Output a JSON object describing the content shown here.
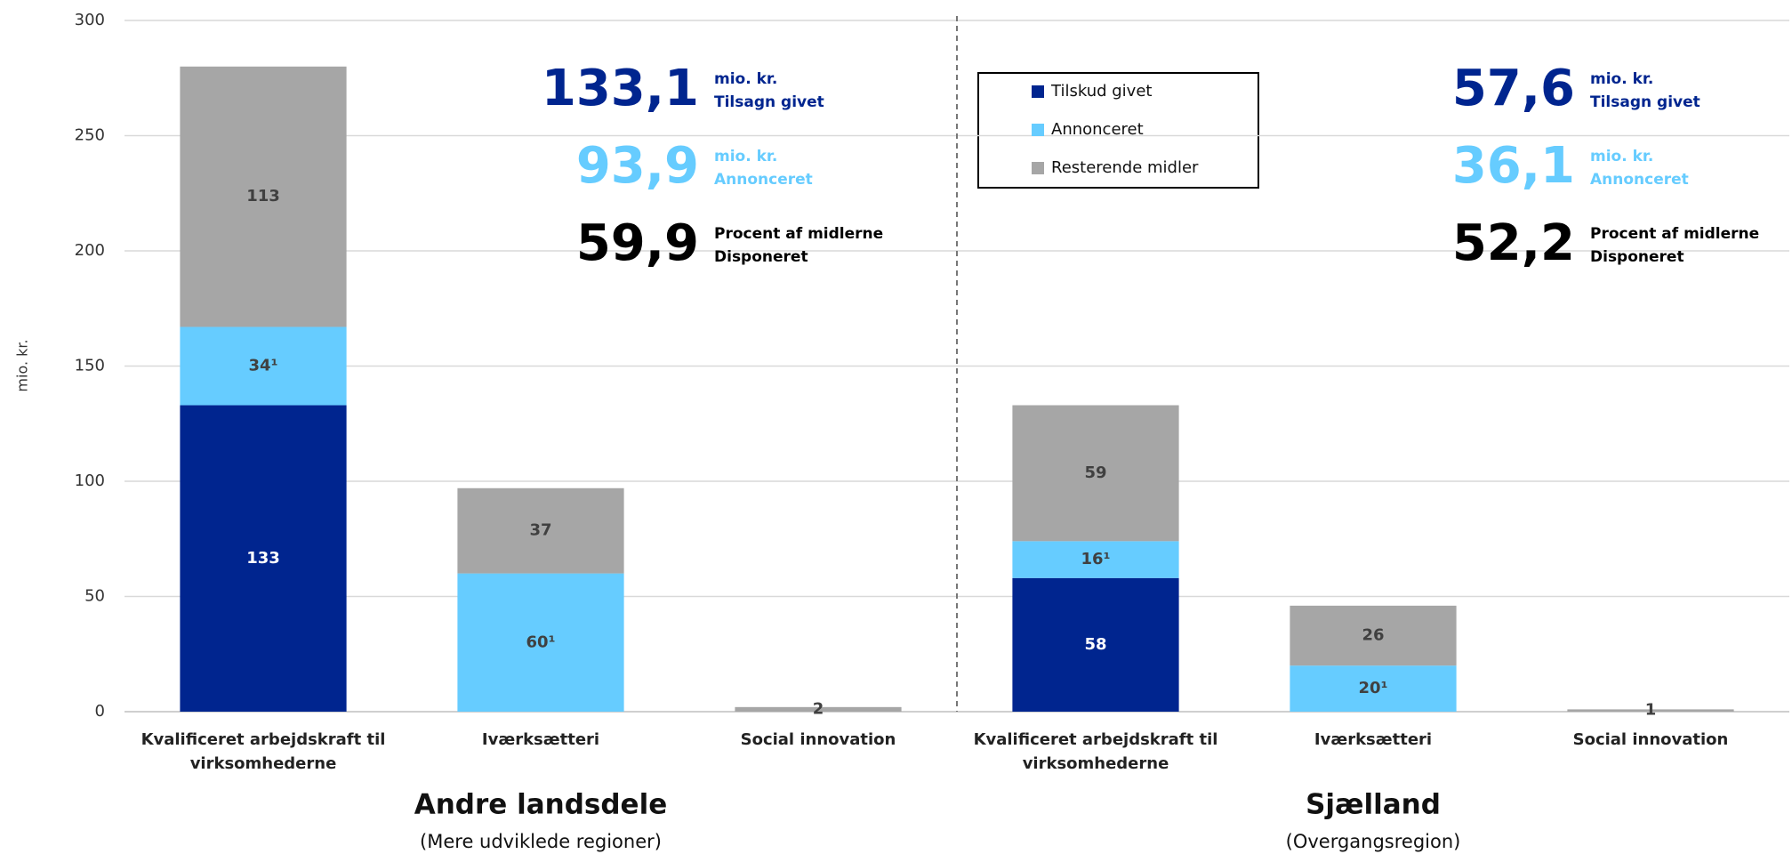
{
  "chart_data": {
    "type": "stacked_bar",
    "y_label": "mio. kr.",
    "categories": [
      "Kvalificeret arbejdskraft til virksomhederne",
      "Iværksætteri",
      "Social innovation",
      "Kvalificeret arbejdskraft til virksomhederne",
      "Iværksætteri",
      "Social innovation"
    ],
    "series": [
      {
        "name": "Tilskud givet",
        "color": "#00258f",
        "label_color": "#ffffff",
        "values": [
          133,
          null,
          null,
          58,
          null,
          null
        ]
      },
      {
        "name": "Annonceret",
        "color": "#66ccff",
        "label_color": "#404040",
        "values": [
          34,
          60,
          null,
          16,
          20,
          null
        ],
        "value_labels": [
          "34¹",
          "60¹",
          null,
          "16¹",
          "20¹",
          null
        ]
      },
      {
        "name": "Resterende midler",
        "color": "#a6a6a6",
        "label_color": "#404040",
        "values": [
          113,
          37,
          2,
          59,
          26,
          1
        ]
      }
    ],
    "ylim": [
      0,
      300
    ],
    "yticks": [
      0,
      50,
      100,
      150,
      200,
      250,
      300
    ],
    "grid": true,
    "groups": [
      {
        "name": "Andre landsdele",
        "subtitle": "(Mere udviklede regioner)",
        "size": 3,
        "annotations": [
          {
            "value": "133,1",
            "lines": [
              "mio. kr.",
              "Tilsagn givet"
            ],
            "color": "#00258f"
          },
          {
            "value": "93,9",
            "lines": [
              "mio. kr.",
              "Annonceret"
            ],
            "color": "#66ccff"
          },
          {
            "value": "59,9",
            "lines": [
              "Procent af midlerne",
              "Disponeret"
            ],
            "color": "#000000"
          }
        ]
      },
      {
        "name": "Sjælland",
        "subtitle": "(Overgangsregion)",
        "size": 3,
        "annotations": [
          {
            "value": "57,6",
            "lines": [
              "mio. kr.",
              "Tilsagn givet"
            ],
            "color": "#00258f"
          },
          {
            "value": "36,1",
            "lines": [
              "mio. kr.",
              "Annonceret"
            ],
            "color": "#66ccff"
          },
          {
            "value": "52,2",
            "lines": [
              "Procent af midlerne",
              "Disponeret"
            ],
            "color": "#000000"
          }
        ]
      }
    ]
  }
}
